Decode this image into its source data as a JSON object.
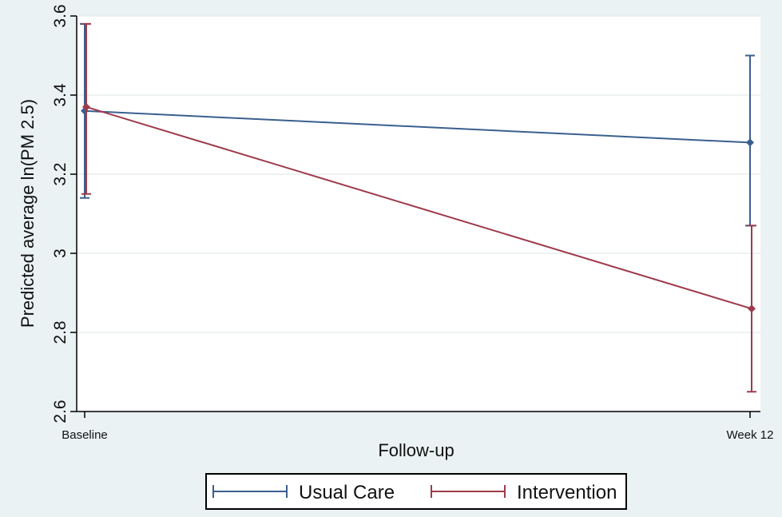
{
  "chart_data": {
    "type": "line",
    "title": "",
    "xlabel": "Follow-up",
    "ylabel": "Predicted average ln(PM 2.5)",
    "categories": [
      "Baseline",
      "Week 12"
    ],
    "ylim": [
      2.6,
      3.6
    ],
    "yticks": [
      "2.6",
      "2.8",
      "3",
      "3.2",
      "3.4",
      "3.6"
    ],
    "grid": true,
    "legend_position": "bottom",
    "series": [
      {
        "name": "Usual Care",
        "color": "#3a5f8f",
        "values": [
          3.36,
          3.28
        ],
        "ci_lower": [
          3.14,
          3.07
        ],
        "ci_upper": [
          3.58,
          3.5
        ]
      },
      {
        "name": "Intervention",
        "color": "#9e3a4a",
        "values": [
          3.37,
          2.86
        ],
        "ci_lower": [
          3.15,
          2.65
        ],
        "ci_upper": [
          3.58,
          3.07
        ]
      }
    ],
    "colors": {
      "background": "#eaf2f3",
      "plot_area": "#ffffff",
      "grid": "#e8eeee"
    }
  }
}
